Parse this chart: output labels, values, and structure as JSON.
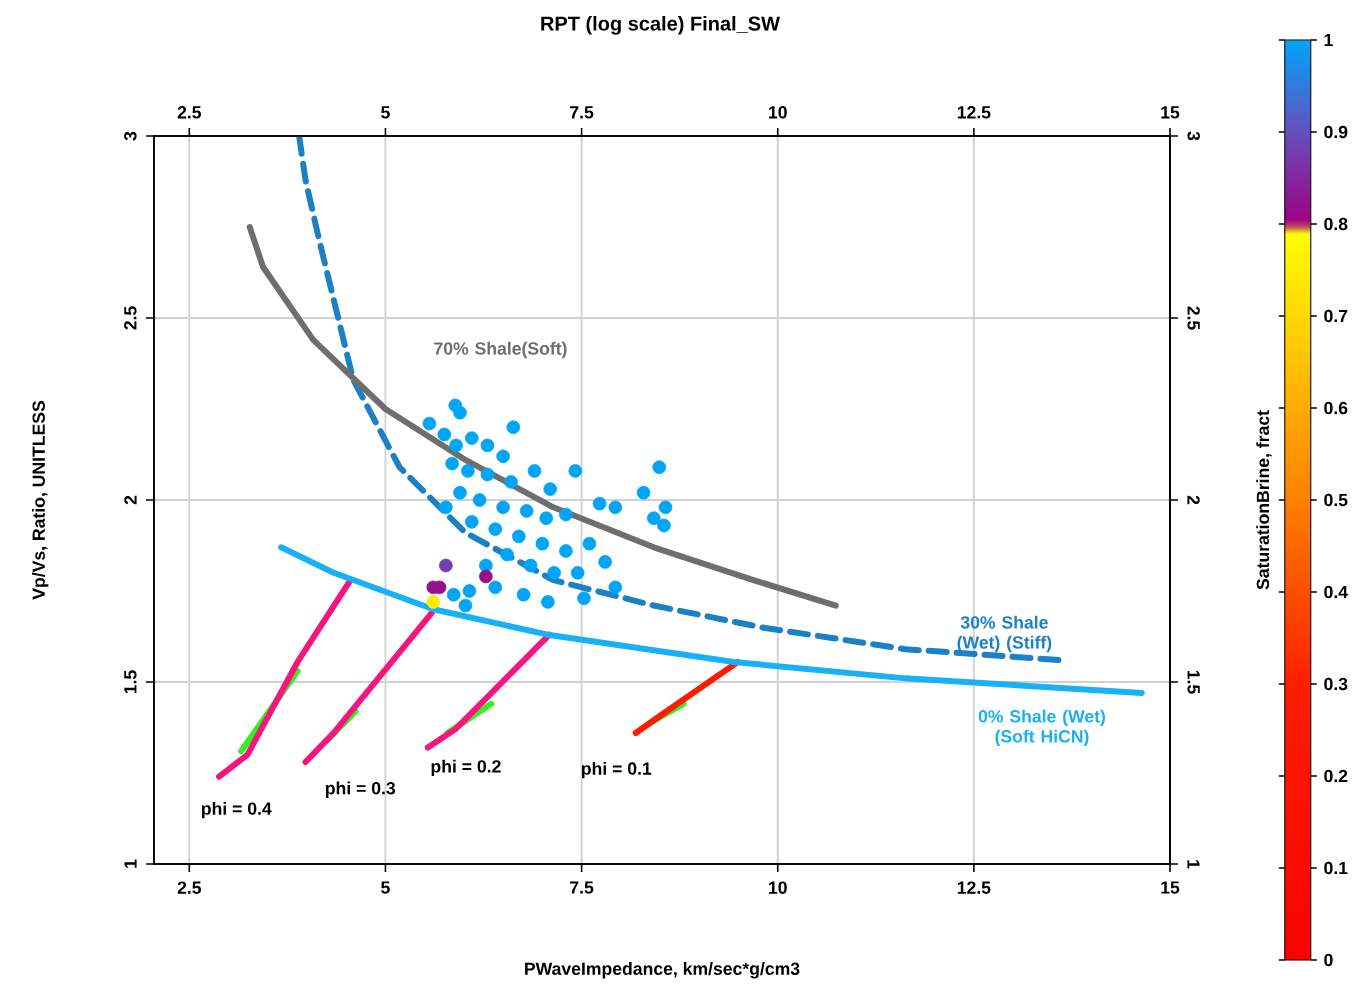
{
  "chart_data": {
    "type": "scatter",
    "title": "RPT (log scale) Final_SW",
    "xlabel": "PWaveImpedance, km/sec*g/cm3",
    "ylabel": "Vp/Vs, Ratio, UNITLESS",
    "clabel": "SaturationBrine, fract",
    "xlim": [
      2.05,
      15
    ],
    "ylim": [
      1,
      3
    ],
    "xticks": [
      2.5,
      5,
      7.5,
      10,
      12.5,
      15
    ],
    "yticks": [
      1,
      1.5,
      2,
      2.5,
      3
    ],
    "x2lim": [
      2.05,
      15
    ],
    "x2ticks": [
      2.5,
      5,
      7.5,
      10,
      12.5,
      15
    ],
    "y2lim": [
      1,
      3
    ],
    "y2ticks": [
      1,
      1.5,
      2,
      2.5,
      3
    ],
    "clim": [
      0,
      1
    ],
    "cticks": [
      0,
      0.1,
      0.2,
      0.3,
      0.4,
      0.5,
      0.6,
      0.7,
      0.8,
      0.9,
      1
    ],
    "grid": true,
    "series": [
      {
        "type": "line",
        "color": "#33ee22",
        "x": [
          3.16,
          3.88
        ],
        "values": [
          1.31,
          1.53
        ]
      },
      {
        "type": "line",
        "color": "#33ee22",
        "x": [
          4.26,
          4.62
        ],
        "values": [
          1.34,
          1.42
        ]
      },
      {
        "type": "line",
        "color": "#33ee22",
        "x": [
          5.79,
          6.35
        ],
        "values": [
          1.36,
          1.44
        ]
      },
      {
        "type": "line",
        "color": "#33ee22",
        "x": [
          8.39,
          8.8
        ],
        "values": [
          1.39,
          1.44
        ]
      },
      {
        "type": "line",
        "color": "#f7147f",
        "x": [
          2.88,
          3.24,
          3.88,
          4.54
        ],
        "values": [
          1.24,
          1.3,
          1.555,
          1.775
        ]
      },
      {
        "type": "line",
        "color": "#f7147f",
        "x": [
          3.98,
          4.34,
          5.59
        ],
        "values": [
          1.28,
          1.36,
          1.69
        ]
      },
      {
        "type": "line",
        "color": "#f7147f",
        "x": [
          5.54,
          5.89,
          7.09
        ],
        "values": [
          1.32,
          1.37,
          1.63
        ]
      },
      {
        "type": "line",
        "color": "#ff1a00",
        "x": [
          8.19,
          8.52,
          9.49
        ],
        "values": [
          1.36,
          1.41,
          1.555
        ]
      },
      {
        "type": "line",
        "name": "0% Shale (Wet) (Soft HiCN)",
        "color": "#19b0f5",
        "x": [
          3.67,
          4.34,
          5.61,
          7.07,
          9.44,
          11.63,
          14.64
        ],
        "values": [
          1.87,
          1.8,
          1.7,
          1.63,
          1.555,
          1.51,
          1.47
        ]
      },
      {
        "marker": "circle",
        "colors": [
          "#00a5fa",
          "#00a5fa",
          "#00a5fa",
          "#00a5fa",
          "#00a5fa",
          "#00a5fa",
          "#00a5fa",
          "#00a5fa",
          "#00a5fa",
          "#00a5fa",
          "#00a5fa",
          "#00a5fa",
          "#00a5fa",
          "#00a5fa",
          "#00a5fa",
          "#00a5fa",
          "#00a5fa",
          "#00a5fa",
          "#00a5fa",
          "#00a5fa",
          "#00a5fa",
          "#00a5fa",
          "#00a5fa",
          "#00a5fa",
          "#00a5fa",
          "#00a5fa",
          "#00a5fa",
          "#00a5fa",
          "#00a5fa",
          "#00a5fa",
          "#00a5fa",
          "#00a5fa",
          "#00a5fa",
          "#00a5fa",
          "#00a5fa",
          "#00a5fa",
          "#00a5fa",
          "#00a5fa",
          "#00a5fa",
          "#00a5fa",
          "#00a5fa",
          "#00a5fa",
          "#00a5fa",
          "#00a5fa",
          "#00a5fa",
          "#00a5fa",
          "#00a5fa",
          "#00a5fa",
          "#00a5fa",
          "#00a5fa",
          "#7040b2",
          "#94108c",
          "#94108c",
          "#94108c",
          "#ffed00"
        ],
        "x": [
          5.56,
          5.89,
          5.95,
          5.75,
          5.9,
          6.1,
          6.3,
          6.63,
          6.5,
          5.85,
          6.05,
          6.3,
          6.6,
          6.9,
          7.1,
          7.42,
          5.95,
          6.2,
          6.5,
          6.8,
          7.05,
          7.3,
          5.77,
          6.1,
          6.4,
          6.7,
          7.0,
          7.3,
          6.28,
          6.55,
          6.85,
          7.15,
          7.45,
          6.4,
          6.76,
          7.07,
          7.53,
          7.93,
          6.02,
          6.07,
          7.73,
          7.93,
          8.29,
          8.49,
          8.57,
          8.55,
          8.42,
          7.6,
          7.8,
          5.87,
          5.77,
          5.69,
          5.61,
          6.28,
          5.61
        ],
        "values": [
          2.21,
          2.26,
          2.24,
          2.18,
          2.15,
          2.17,
          2.15,
          2.2,
          2.12,
          2.1,
          2.08,
          2.07,
          2.05,
          2.08,
          2.03,
          2.08,
          2.02,
          2.0,
          1.98,
          1.97,
          1.95,
          1.96,
          1.98,
          1.94,
          1.92,
          1.9,
          1.88,
          1.86,
          1.82,
          1.85,
          1.82,
          1.8,
          1.8,
          1.76,
          1.74,
          1.72,
          1.73,
          1.76,
          1.71,
          1.75,
          1.99,
          1.98,
          2.02,
          2.09,
          1.98,
          1.93,
          1.95,
          1.88,
          1.83,
          1.74,
          1.82,
          1.76,
          1.76,
          1.79,
          1.72
        ],
        "cvalues": [
          1,
          1,
          1,
          1,
          1,
          1,
          1,
          1,
          1,
          1,
          1,
          1,
          1,
          1,
          1,
          1,
          1,
          1,
          1,
          1,
          1,
          1,
          1,
          1,
          1,
          1,
          1,
          1,
          1,
          1,
          1,
          1,
          1,
          1,
          1,
          1,
          1,
          1,
          1,
          1,
          1,
          1,
          1,
          1,
          1,
          1,
          1,
          1,
          1,
          1,
          0.88,
          0.82,
          0.82,
          0.82,
          0.75
        ]
      },
      {
        "type": "line",
        "name": "30% Shale (Wet) (Stiff)",
        "color": "#1b80c4",
        "line_style": "dashed",
        "x": [
          3.9,
          3.98,
          4.16,
          4.59,
          5.18,
          6.02,
          7.14,
          8.42,
          9.8,
          11.63,
          13.62
        ],
        "values": [
          3.0,
          2.88,
          2.71,
          2.33,
          2.09,
          1.91,
          1.78,
          1.71,
          1.65,
          1.59,
          1.56
        ]
      },
      {
        "type": "line",
        "name": "70% Shale(Soft)",
        "color": "#6e6e6e",
        "x": [
          3.27,
          3.44,
          4.08,
          5.0,
          6.02,
          7.14,
          8.42,
          9.69,
          10.74
        ],
        "values": [
          2.75,
          2.64,
          2.44,
          2.25,
          2.11,
          1.98,
          1.87,
          1.78,
          1.71
        ]
      }
    ],
    "annotations": [
      "phi = 0.4",
      "phi = 0.3",
      "phi = 0.2",
      "phi = 0.1"
    ]
  }
}
